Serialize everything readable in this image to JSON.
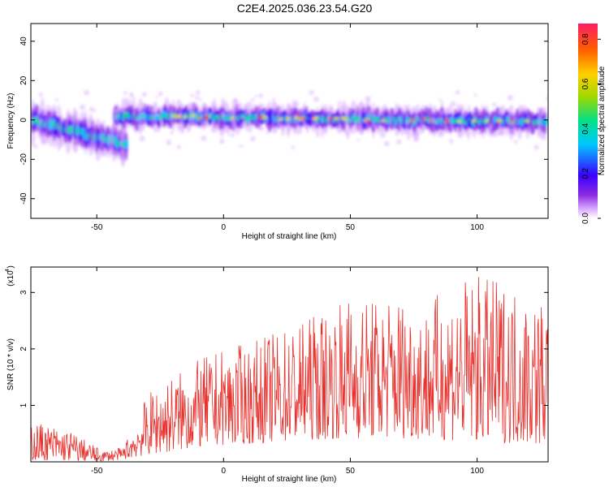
{
  "title": "C2E4.2025.036.23.54.G20",
  "chart_data": [
    {
      "type": "heatmap",
      "xlabel": "Height of straight line (km)",
      "ylabel": "Frequency (Hz)",
      "xlim": [
        -76,
        128
      ],
      "ylim": [
        -50,
        49
      ],
      "xticks": [
        -50,
        0,
        50,
        100
      ],
      "yticks": [
        -40,
        -20,
        0,
        20,
        40
      ],
      "colorbar": {
        "label": "Normalized spectral amplitude",
        "range": [
          0,
          0.87
        ],
        "ticks": [
          "0.0",
          "0.2",
          "0.4",
          "0.6",
          "0.8"
        ],
        "colors": [
          "#ffffff",
          "#8a2be2",
          "#3c00ff",
          "#00c8ff",
          "#00e08a",
          "#9cd800",
          "#ffd000",
          "#ff5a00",
          "#ff1e64"
        ]
      },
      "bands": [
        {
          "x_start": -75,
          "x_end": -38,
          "center_start": 0,
          "center_end": -13,
          "halfwidth": 4
        },
        {
          "x_start": -42,
          "x_end": 128,
          "center_start": 2,
          "center_end": -1,
          "halfwidth": 3
        }
      ]
    },
    {
      "type": "line",
      "xlabel": "Height of straight line (km)",
      "ylabel": "SNR (10 * v/v)",
      "y_multiplier": "(x10 )",
      "y_exponent": "4",
      "xlim": [
        -76,
        128
      ],
      "ylim": [
        0,
        3.45
      ],
      "xticks": [
        -50,
        0,
        50,
        100
      ],
      "yticks": [
        1,
        2,
        3
      ],
      "color": "#e8302c",
      "envelope": {
        "x": [
          -76,
          -60,
          -48,
          -40,
          -35,
          -30,
          -25,
          -20,
          -15,
          -10,
          -5,
          0,
          10,
          20,
          30,
          40,
          50,
          60,
          70,
          80,
          90,
          100,
          110,
          120,
          128
        ],
        "upper": [
          0.75,
          0.55,
          0.2,
          0.25,
          0.65,
          1.2,
          1.4,
          1.55,
          1.65,
          1.8,
          1.9,
          2.0,
          2.1,
          2.3,
          2.5,
          2.7,
          2.95,
          2.9,
          3.0,
          2.8,
          3.2,
          3.3,
          3.2,
          3.0,
          2.9
        ],
        "lower": [
          0.03,
          0.02,
          0.01,
          0.04,
          0.08,
          0.12,
          0.15,
          0.18,
          0.22,
          0.25,
          0.28,
          0.3,
          0.32,
          0.35,
          0.38,
          0.4,
          0.42,
          0.42,
          0.42,
          0.4,
          0.38,
          0.36,
          0.34,
          0.32,
          0.3
        ]
      }
    }
  ]
}
